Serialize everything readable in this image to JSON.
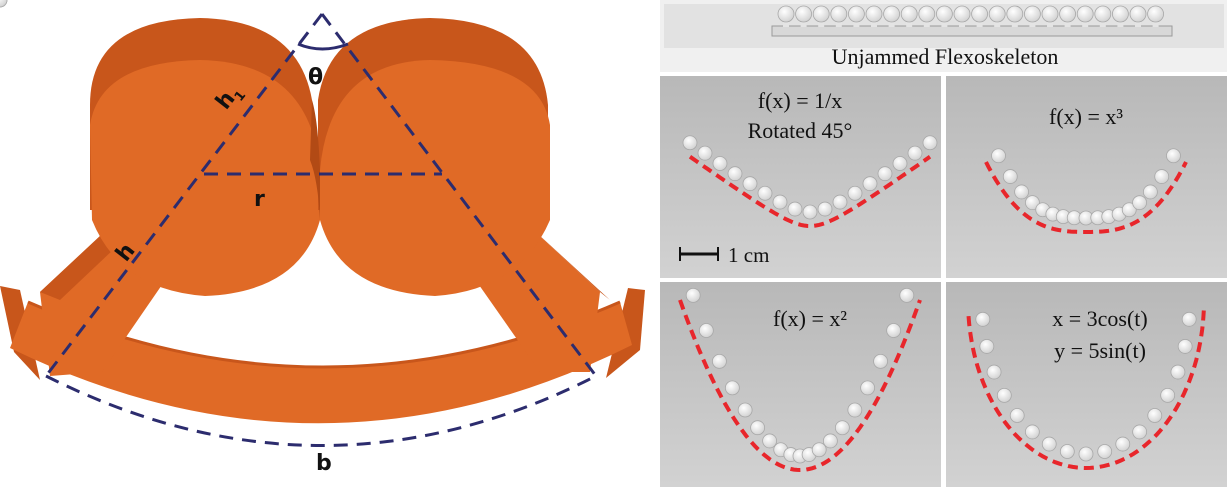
{
  "diagram": {
    "labels": {
      "theta": "θ",
      "h1": "h",
      "h1_subscript": "1",
      "h": "h",
      "r": "r",
      "b": "b"
    },
    "colors": {
      "segment": "#e06a26",
      "segment_dark": "#c8561b",
      "dashed": "#2c2c6e"
    }
  },
  "photos": {
    "top_caption": "Unjammed Flexoskeleton",
    "panels": [
      {
        "line1": "f(x) = 1/x",
        "line2": "Rotated 45°"
      },
      {
        "line1": "f(x) = x³",
        "line2": ""
      },
      {
        "line1": "f(x) = x²",
        "line2": ""
      },
      {
        "line1": "x = 3cos(t)",
        "line2": "y = 5sin(t)"
      }
    ],
    "scale_bar_label": "1 cm",
    "curve_color": "#e8262b"
  }
}
